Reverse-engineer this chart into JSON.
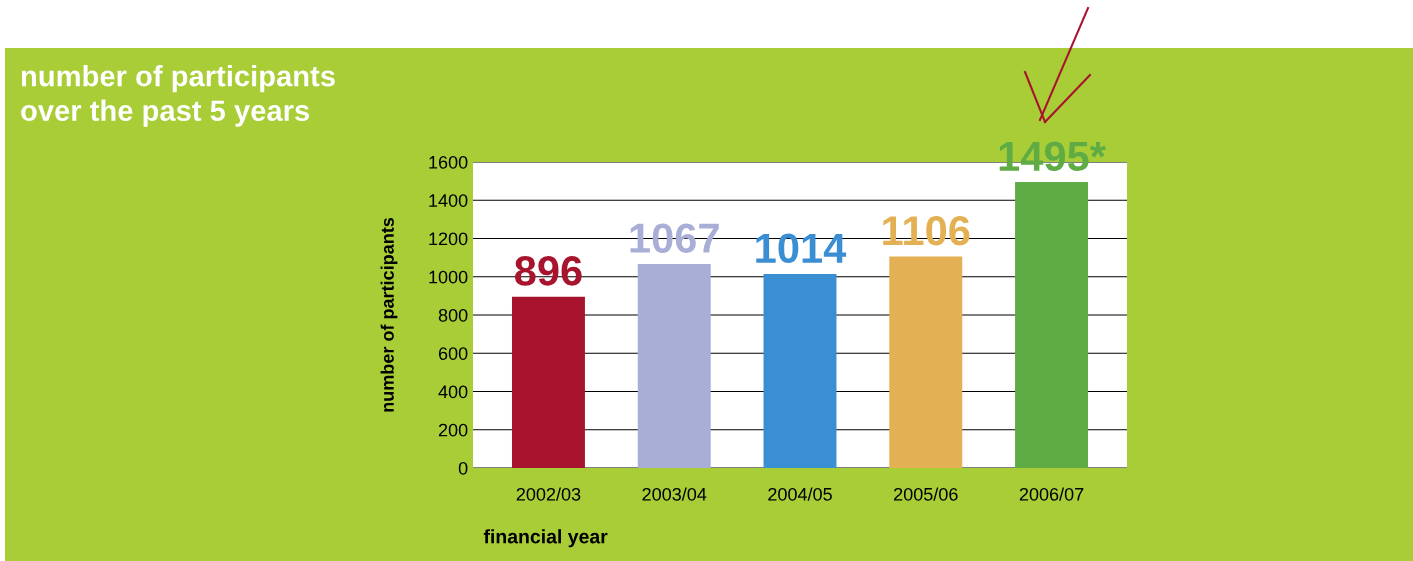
{
  "chart_data": {
    "type": "bar",
    "title": "number of participants\nover the past 5 years",
    "xlabel": "financial year",
    "ylabel": "number of participants",
    "categories": [
      "2002/03",
      "2003/04",
      "2004/05",
      "2005/06",
      "2006/07"
    ],
    "values": [
      896,
      1067,
      1014,
      1106,
      1495
    ],
    "colors": [
      "#a8142e",
      "#a9aed6",
      "#3a8fd4",
      "#e3b153",
      "#5fac45"
    ],
    "value_labels": [
      "896",
      "1067",
      "1014",
      "1106",
      "1495*"
    ],
    "ylim": [
      0,
      1600
    ],
    "yticks": [
      0,
      200,
      400,
      600,
      800,
      1000,
      1200,
      1400,
      1600
    ],
    "grid": "y"
  }
}
